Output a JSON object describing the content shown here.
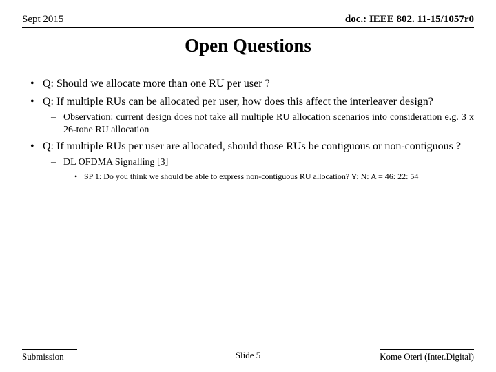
{
  "header": {
    "left": "Sept 2015",
    "right": "doc.: IEEE 802. 11-15/1057r0"
  },
  "title": "Open Questions",
  "bullets": [
    {
      "text": "Q: Should we allocate more than one RU per user ?"
    },
    {
      "text": "Q: If multiple RUs can be allocated per user, how does this affect the interleaver design?",
      "sub": [
        {
          "text": "Observation: current design does not take all multiple RU allocation scenarios into consideration e.g. 3 x 26-tone RU allocation"
        }
      ]
    },
    {
      "text": "Q: If multiple RUs per user are allocated, should those RUs be contiguous or non-contiguous ?",
      "sub": [
        {
          "text": "DL OFDMA Signalling [3]",
          "sub2": [
            {
              "text": "SP 1: Do you think we should be able to express non-contiguous RU allocation? Y: N: A = 46: 22: 54"
            }
          ]
        }
      ]
    }
  ],
  "footer": {
    "left": "Submission",
    "center": "Slide 5",
    "right": "Kome Oteri (Inter.Digital)"
  }
}
